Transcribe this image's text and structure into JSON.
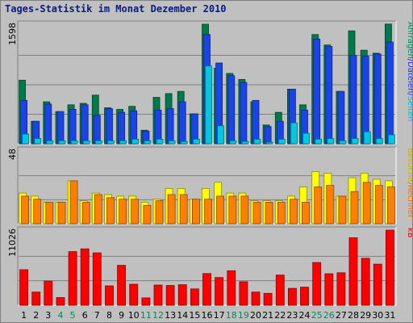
{
  "title": "Tages-Statistik im Monat Dezember 2010",
  "chart_data": {
    "type": "bar",
    "categories": [
      "1",
      "2",
      "3",
      "4",
      "5",
      "6",
      "7",
      "8",
      "9",
      "10",
      "11",
      "12",
      "13",
      "14",
      "15",
      "16",
      "17",
      "18",
      "19",
      "20",
      "21",
      "22",
      "23",
      "24",
      "25",
      "26",
      "27",
      "28",
      "29",
      "30",
      "31"
    ],
    "weekend_days": [
      "4",
      "5",
      "11",
      "12",
      "18",
      "19",
      "25",
      "26"
    ],
    "panels": [
      {
        "id": "hits",
        "ymax_label": "1598",
        "ymax": 1598,
        "side_labels": [
          {
            "text": "Anfragen",
            "color": "#008a5c"
          },
          {
            "text": "/",
            "color": "#1a3ad8"
          },
          {
            "text": "Dateien",
            "color": "#1a3ad8"
          },
          {
            "text": "/",
            "color": "#1a3ad8"
          },
          {
            "text": "Seiten",
            "color": "#00b8d8"
          }
        ],
        "series": [
          {
            "name": "Anfragen",
            "color": "#007a4a",
            "values": [
              850,
              300,
              560,
              430,
              520,
              540,
              650,
              480,
              460,
              500,
              180,
              620,
              670,
              700,
              400,
              1598,
              1010,
              940,
              860,
              560,
              250,
              420,
              730,
              520,
              1460,
              1320,
              700,
              1510,
              1250,
              1210,
              1600
            ]
          },
          {
            "name": "Dateien",
            "color": "#1a44e8",
            "values": [
              580,
              300,
              530,
              430,
              460,
              520,
              380,
              470,
              420,
              440,
              170,
              450,
              470,
              560,
              400,
              1460,
              1080,
              910,
              820,
              580,
              230,
              300,
              730,
              450,
              1400,
              1300,
              700,
              1180,
              1170,
              1200,
              1360
            ]
          },
          {
            "name": "Seiten",
            "color": "#00c8e0",
            "values": [
              130,
              70,
              40,
              40,
              40,
              40,
              40,
              40,
              40,
              60,
              40,
              60,
              40,
              30,
              60,
              1040,
              240,
              40,
              30,
              60,
              20,
              60,
              280,
              140,
              60,
              70,
              40,
              70,
              160,
              70,
              120
            ]
          }
        ]
      },
      {
        "id": "visits",
        "ymax_label": "48",
        "ymax": 48,
        "side_labels": [
          {
            "text": "Besuche",
            "color": "#c8b400"
          },
          {
            "text": "/",
            "color": "#e87800"
          },
          {
            "text": "Rechner",
            "color": "#e87800"
          }
        ],
        "series": [
          {
            "name": "Besuche",
            "color": "#ffff00",
            "values": [
              20,
              18,
              14,
              14,
              28,
              15,
              20,
              19,
              18,
              18,
              14,
              16,
              23,
              23,
              16,
              23,
              27,
              20,
              20,
              15,
              15,
              15,
              18,
              24,
              34,
              33,
              18,
              30,
              33,
              29,
              28
            ]
          },
          {
            "name": "Rechner",
            "color": "#ff8000",
            "values": [
              18,
              16,
              14,
              14,
              28,
              14,
              19,
              17,
              16,
              16,
              12,
              15,
              19,
              19,
              16,
              16,
              18,
              18,
              18,
              14,
              14,
              14,
              16,
              14,
              24,
              25,
              18,
              21,
              27,
              25,
              24
            ]
          }
        ]
      },
      {
        "id": "kb",
        "ymax_label": "11026",
        "ymax": 11026,
        "side_labels": [
          {
            "text": "kB",
            "color": "#e80000"
          }
        ],
        "series": [
          {
            "name": "kB",
            "color": "#ff0000",
            "values": [
              5220,
              1930,
              3540,
              1130,
              7870,
              8280,
              7700,
              2840,
              5860,
              3080,
              1080,
              2960,
              2900,
              3010,
              2400,
              4650,
              4070,
              5060,
              3450,
              1930,
              1740,
              4440,
              2480,
              2650,
              6270,
              4620,
              4770,
              9910,
              6890,
              6040,
              11026
            ]
          }
        ]
      }
    ]
  }
}
